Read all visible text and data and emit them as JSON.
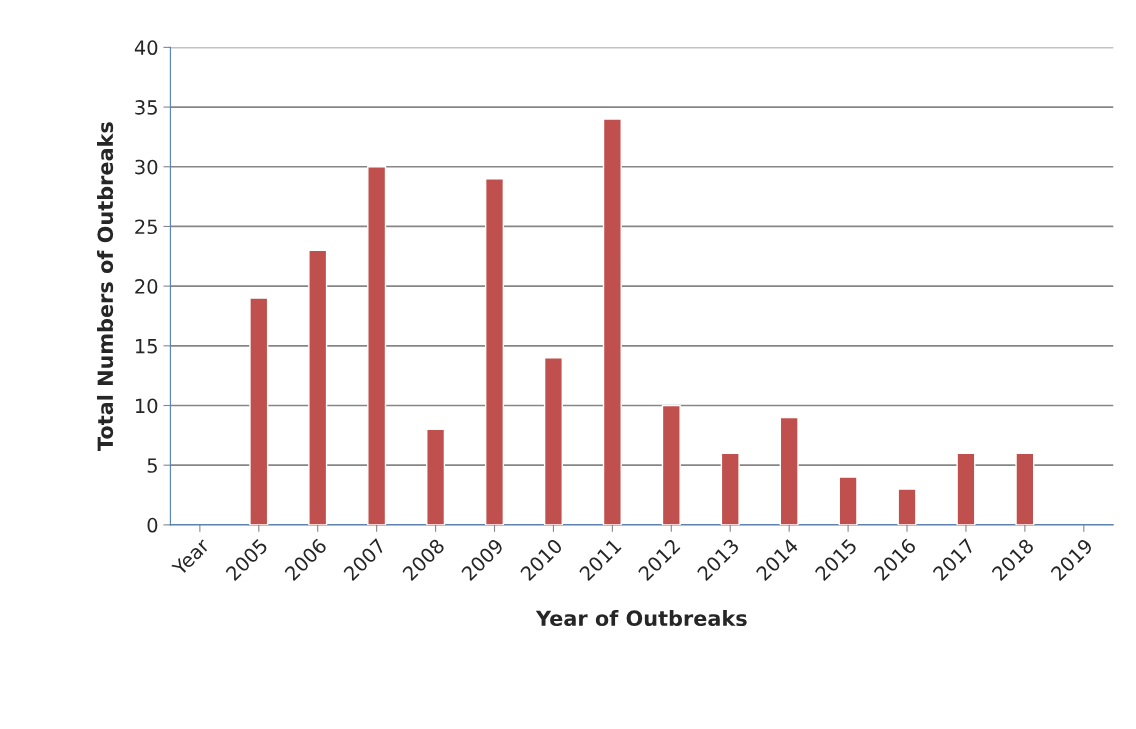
{
  "chart_data": {
    "type": "bar",
    "xlabel": "Year of Outbreaks",
    "ylabel": "Total Numbers of Outbreaks",
    "categories": [
      "Year",
      "2005",
      "2006",
      "2007",
      "2008",
      "2009",
      "2010",
      "2011",
      "2012",
      "2013",
      "2014",
      "2015",
      "2016",
      "2017",
      "2018",
      "2019"
    ],
    "values": [
      null,
      19,
      23,
      30,
      8,
      29,
      14,
      34,
      10,
      6,
      9,
      4,
      3,
      6,
      6,
      null
    ],
    "color": "#c0504d",
    "ylim": [
      0,
      40
    ],
    "yticks": [
      0,
      5,
      10,
      15,
      20,
      25,
      30,
      35,
      40
    ],
    "grid": "y"
  }
}
